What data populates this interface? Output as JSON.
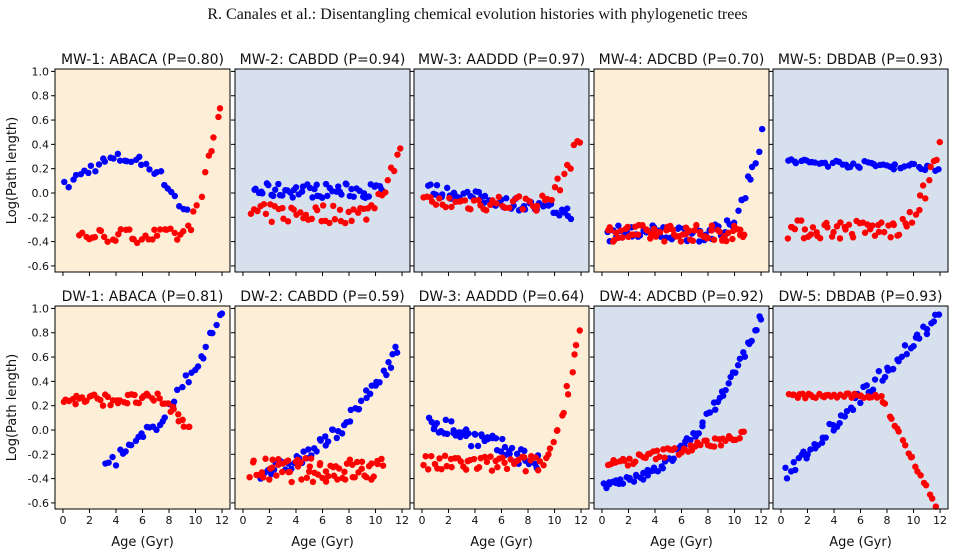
{
  "page": {
    "header": "R. Canales et al.: Disentangling chemical evolution histories with phylogenetic trees"
  },
  "colors": {
    "orange_bg": "#fdeed8",
    "blue_bg": "#d7e1ee",
    "series_blue": "#0000ff",
    "series_red": "#ff0000"
  },
  "shared_axes": {
    "ylabel": "Log(Path length)",
    "xlabel": "Age (Gyr)",
    "ylim": [
      -0.65,
      1.02
    ],
    "xlim": [
      -0.6,
      12.6
    ],
    "yticks": [
      "-0.6",
      "-0.4",
      "-0.2",
      "0.0",
      "0.2",
      "0.4",
      "0.6",
      "0.8",
      "1.0"
    ],
    "xticks": [
      "0",
      "2",
      "4",
      "6",
      "8",
      "10",
      "12"
    ]
  },
  "chart_data": [
    {
      "type": "scatter",
      "title": "MW-1: ABACA (P=0.80)",
      "background": "orange",
      "series": [
        {
          "color": "blue",
          "trend": "arch",
          "a": 0.04,
          "b": 0.31,
          "c": 0.05,
          "n": 34,
          "xmin": 0.2,
          "xmax": 9.3
        },
        {
          "color": "red",
          "trend": "flat_then_rise",
          "a": -0.35,
          "b": 0.8,
          "c": 0.06,
          "n": 44,
          "xmin": 1.2,
          "xmax": 11.9
        }
      ]
    },
    {
      "type": "scatter",
      "title": "MW-2: CABDD (P=0.94)",
      "background": "blue",
      "series": [
        {
          "color": "blue",
          "trend": "flat",
          "a": 0.02,
          "b": 0.0,
          "c": 0.06,
          "n": 55,
          "xmin": 0.8,
          "xmax": 10.6
        },
        {
          "color": "red",
          "trend": "flat_then_rise",
          "a": -0.17,
          "b": 0.42,
          "c": 0.08,
          "n": 50,
          "xmin": 0.6,
          "xmax": 11.8
        }
      ]
    },
    {
      "type": "scatter",
      "title": "MW-3: AADDD (P=0.97)",
      "background": "blue",
      "series": [
        {
          "color": "blue",
          "trend": "linear",
          "a": 0.04,
          "b": -0.18,
          "c": 0.05,
          "n": 55,
          "xmin": 0.4,
          "xmax": 11.3
        },
        {
          "color": "red",
          "trend": "flat_then_rise",
          "a": -0.08,
          "b": 0.48,
          "c": 0.07,
          "n": 50,
          "xmin": 0.1,
          "xmax": 11.9
        }
      ]
    },
    {
      "type": "scatter",
      "title": "MW-4: ADCBD (P=0.70)",
      "background": "orange",
      "series": [
        {
          "color": "blue",
          "trend": "flat_then_rise",
          "a": -0.33,
          "b": 0.46,
          "c": 0.07,
          "n": 60,
          "xmin": 0.4,
          "xmax": 12.0
        },
        {
          "color": "red",
          "trend": "flat",
          "a": -0.33,
          "b": 0.0,
          "c": 0.07,
          "n": 70,
          "xmin": 0.4,
          "xmax": 10.8
        }
      ]
    },
    {
      "type": "scatter",
      "title": "MW-5: DBDAB (P=0.93)",
      "background": "blue",
      "series": [
        {
          "color": "blue",
          "trend": "linear",
          "a": 0.26,
          "b": 0.21,
          "c": 0.03,
          "n": 48,
          "xmin": 0.5,
          "xmax": 11.8
        },
        {
          "color": "red",
          "trend": "flat_then_rise",
          "a": -0.3,
          "b": 0.39,
          "c": 0.08,
          "n": 60,
          "xmin": 0.5,
          "xmax": 11.9
        }
      ]
    },
    {
      "type": "scatter",
      "title": "DW-1: ABACA (P=0.81)",
      "background": "orange",
      "series": [
        {
          "color": "blue",
          "trend": "exp",
          "a": -0.35,
          "b": 0.96,
          "c": 0.06,
          "n": 38,
          "xmin": 3.3,
          "xmax": 12.0
        },
        {
          "color": "red",
          "trend": "drop",
          "a": 0.25,
          "b": 0.02,
          "c": 0.05,
          "n": 50,
          "xmin": 0.1,
          "xmax": 9.6
        }
      ]
    },
    {
      "type": "scatter",
      "title": "DW-2: CABDD (P=0.59)",
      "background": "orange",
      "series": [
        {
          "color": "blue",
          "trend": "exp",
          "a": -0.35,
          "b": 0.73,
          "c": 0.06,
          "n": 55,
          "xmin": 1.3,
          "xmax": 11.7
        },
        {
          "color": "red",
          "trend": "flat",
          "a": -0.33,
          "b": 0.0,
          "c": 0.1,
          "n": 70,
          "xmin": 0.6,
          "xmax": 10.5
        }
      ]
    },
    {
      "type": "scatter",
      "title": "DW-3: AADDD (P=0.64)",
      "background": "orange",
      "series": [
        {
          "color": "blue",
          "trend": "linear",
          "a": 0.1,
          "b": -0.4,
          "c": 0.08,
          "n": 52,
          "xmin": 0.5,
          "xmax": 8.8
        },
        {
          "color": "red",
          "trend": "flat_then_rise",
          "a": -0.28,
          "b": 0.92,
          "c": 0.07,
          "n": 60,
          "xmin": 0.1,
          "xmax": 11.9
        }
      ]
    },
    {
      "type": "scatter",
      "title": "DW-4: ADCBD (P=0.92)",
      "background": "blue",
      "series": [
        {
          "color": "blue",
          "trend": "exp",
          "a": -0.45,
          "b": 0.93,
          "c": 0.04,
          "n": 70,
          "xmin": 0.1,
          "xmax": 12.0
        },
        {
          "color": "red",
          "trend": "linear",
          "a": -0.3,
          "b": -0.02,
          "c": 0.04,
          "n": 55,
          "xmin": 0.4,
          "xmax": 10.7
        }
      ]
    },
    {
      "type": "scatter",
      "title": "DW-5: DBDAB (P=0.93)",
      "background": "blue",
      "series": [
        {
          "color": "blue",
          "trend": "linear",
          "a": -0.4,
          "b": 0.95,
          "c": 0.06,
          "n": 60,
          "xmin": 0.3,
          "xmax": 11.9
        },
        {
          "color": "red",
          "trend": "drop",
          "a": 0.28,
          "b": -0.15,
          "c": 0.02,
          "n": 55,
          "xmin": 0.6,
          "xmax": 11.6
        }
      ]
    }
  ]
}
